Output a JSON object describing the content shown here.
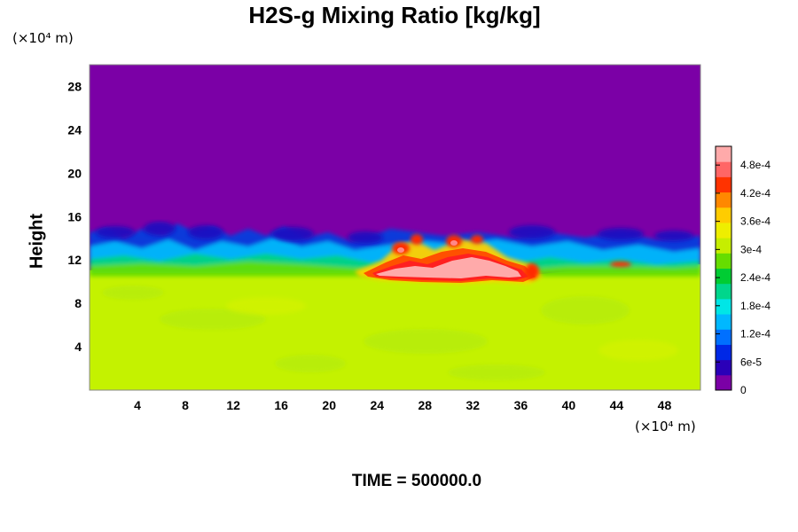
{
  "chart_data": {
    "type": "heatmap",
    "title": "H2S-g Mixing Ratio [kg/kg]",
    "ylabel": "Height",
    "x_unit_label": "(×10⁴ m)",
    "y_unit_label": "(×10⁴ m)",
    "footer": "TIME = 500000.0",
    "xlim": [
      0,
      51
    ],
    "ylim": [
      0,
      30
    ],
    "x_ticks": [
      4,
      8,
      12,
      16,
      20,
      24,
      28,
      32,
      36,
      40,
      44,
      48
    ],
    "x_tick_labels": [
      "4",
      "8",
      "12",
      "16",
      "20",
      "24",
      "28",
      "32",
      "36",
      "40",
      "44",
      "48"
    ],
    "y_ticks": [
      4,
      8,
      12,
      16,
      20,
      24,
      28
    ],
    "y_tick_labels": [
      "4",
      "8",
      "12",
      "16",
      "20",
      "24",
      "28"
    ],
    "colorbar": {
      "range": [
        0,
        0.00052
      ],
      "tick_values": [
        0,
        6e-05,
        0.00012,
        0.00018,
        0.00024,
        0.0003,
        0.00036,
        0.00042,
        0.00048
      ],
      "tick_labels": [
        "0",
        "6e-5",
        "1.2e-4",
        "1.8e-4",
        "2.4e-4",
        "3e-4",
        "3.6e-4",
        "4.2e-4",
        "4.8e-4"
      ],
      "colors": [
        "#7b00a6",
        "#2a00b8",
        "#0028e6",
        "#0070ff",
        "#00b8ff",
        "#00e6e6",
        "#00d68c",
        "#00cc33",
        "#66dd00",
        "#c6ee00",
        "#eeee00",
        "#ffcc00",
        "#ff8800",
        "#ff3300",
        "#ff6666",
        "#ffaaaa"
      ]
    },
    "regions": {
      "background_value": 0,
      "lower_layer_value": 0.00034,
      "plume_core_value": 0.0005,
      "interface_height_range": [
        11,
        15
      ],
      "plume_x_range": [
        22,
        37
      ]
    }
  }
}
